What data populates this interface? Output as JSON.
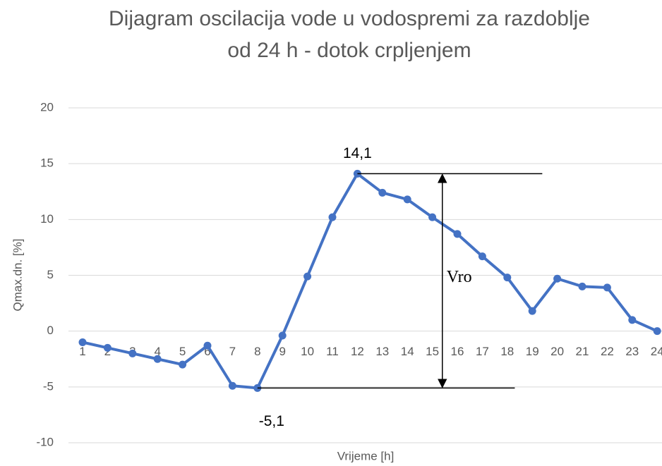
{
  "chart_data": {
    "type": "line",
    "title": [
      "Dijagram oscilacija vode u vodospremi za razdoblje",
      "od 24 h - dotok crpljenjem"
    ],
    "y_label": "Qmax.dn.  [%]",
    "x_label": "Vrijeme [h]",
    "categories": [
      "1",
      "2",
      "3",
      "4",
      "5",
      "6",
      "7",
      "8",
      "9",
      "10",
      "11",
      "12",
      "13",
      "14",
      "15",
      "16",
      "17",
      "18",
      "19",
      "20",
      "21",
      "22",
      "23",
      "24"
    ],
    "series": [
      {
        "name": "Qmax.dn.",
        "color": "#4472c4",
        "values": [
          -1.0,
          -1.5,
          -2.0,
          -2.5,
          -3.0,
          -1.3,
          -4.9,
          -5.1,
          -0.4,
          4.9,
          10.2,
          14.1,
          12.4,
          11.8,
          10.2,
          8.7,
          6.7,
          4.8,
          1.8,
          4.7,
          4.0,
          3.9,
          1.0,
          0.0
        ],
        "value_labels": [
          null,
          null,
          null,
          null,
          null,
          null,
          null,
          "-5,1",
          null,
          null,
          null,
          "14,1",
          null,
          null,
          null,
          null,
          null,
          null,
          null,
          null,
          null,
          null,
          null,
          null
        ]
      }
    ],
    "annotation": "Vro",
    "ylim": [
      -10,
      20
    ],
    "yticks": [
      -10,
      -5,
      0,
      5,
      10,
      15,
      20
    ],
    "grid": true
  }
}
